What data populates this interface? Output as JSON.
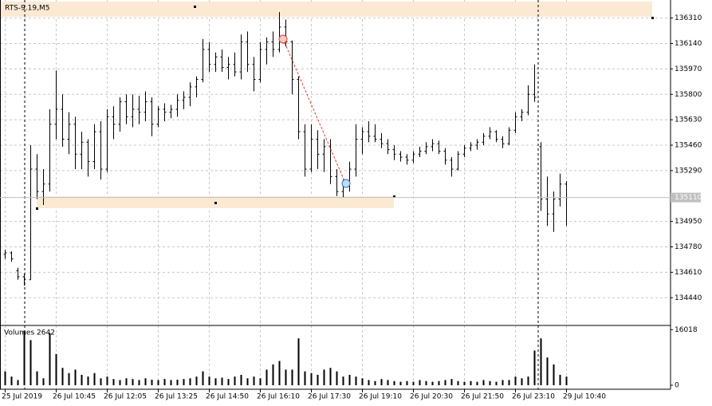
{
  "chart_data": [
    {
      "type": "ohlc",
      "title": "RTS-9.19,M5",
      "grid": true,
      "color": "#000000",
      "categories": [
        "25 Jul 2019",
        null,
        null,
        null,
        null,
        null,
        null,
        null,
        "26 Jul 10:45",
        null,
        null,
        null,
        null,
        null,
        null,
        null,
        "26 Jul 12:05",
        null,
        null,
        null,
        null,
        null,
        null,
        null,
        "26 Jul 13:25",
        null,
        null,
        null,
        null,
        null,
        null,
        null,
        "26 Jul 14:50",
        null,
        null,
        null,
        null,
        null,
        null,
        null,
        "26 Jul 16:10",
        null,
        null,
        null,
        null,
        null,
        null,
        null,
        "26 Jul 17:30",
        null,
        null,
        null,
        null,
        null,
        null,
        null,
        "26 Jul 19:10",
        null,
        null,
        null,
        null,
        null,
        null,
        null,
        "26 Jul 20:30",
        null,
        null,
        null,
        null,
        null,
        null,
        null,
        "26 Jul 21:50",
        null,
        null,
        null,
        null,
        null,
        null,
        null,
        "26 Jul 23:10",
        null,
        null,
        null,
        null,
        null,
        null,
        null,
        "29 Jul 10:40"
      ],
      "ohlc": [
        [
          134730,
          134760,
          134700,
          134740
        ],
        [
          134740,
          134750,
          134680,
          134700
        ],
        [
          134620,
          134640,
          134560,
          134580
        ],
        [
          134580,
          134600,
          134520,
          134560
        ],
        [
          134560,
          135460,
          134560,
          135300
        ],
        [
          135300,
          135400,
          135100,
          135150
        ],
        [
          135150,
          135300,
          135060,
          135200
        ],
        [
          135200,
          135700,
          135150,
          135600
        ],
        [
          135600,
          135960,
          135500,
          135700
        ],
        [
          135700,
          135800,
          135450,
          135500
        ],
        [
          135500,
          135680,
          135400,
          135600
        ],
        [
          135600,
          135650,
          135300,
          135400
        ],
        [
          135400,
          135550,
          135300,
          135480
        ],
        [
          135480,
          135500,
          135250,
          135350
        ],
        [
          135350,
          135600,
          135300,
          135550
        ],
        [
          135550,
          135620,
          135230,
          135300
        ],
        [
          135300,
          135700,
          135280,
          135650
        ],
        [
          135650,
          135720,
          135500,
          135600
        ],
        [
          135600,
          135780,
          135550,
          135750
        ],
        [
          135750,
          135800,
          135600,
          135650
        ],
        [
          135650,
          135800,
          135580,
          135700
        ],
        [
          135700,
          135790,
          135600,
          135680
        ],
        [
          135680,
          135820,
          135620,
          135750
        ],
        [
          135750,
          135780,
          135520,
          135600
        ],
        [
          135600,
          135720,
          135580,
          135700
        ],
        [
          135700,
          135740,
          135620,
          135680
        ],
        [
          135680,
          135730,
          135640,
          135700
        ],
        [
          135700,
          135800,
          135650,
          135760
        ],
        [
          135760,
          135820,
          135700,
          135780
        ],
        [
          135780,
          135880,
          135720,
          135850
        ],
        [
          135850,
          135920,
          135780,
          135900
        ],
        [
          135900,
          136170,
          135880,
          136100
        ],
        [
          136100,
          136150,
          135950,
          136000
        ],
        [
          136000,
          136080,
          135950,
          136050
        ],
        [
          136050,
          136100,
          135950,
          135980
        ],
        [
          135980,
          136050,
          135900,
          136000
        ],
        [
          136000,
          136080,
          135920,
          135950
        ],
        [
          135950,
          136200,
          135900,
          136150
        ],
        [
          136150,
          136220,
          135950,
          136000
        ],
        [
          136000,
          136050,
          135820,
          135900
        ],
        [
          135900,
          136150,
          135880,
          136100
        ],
        [
          136100,
          136180,
          136000,
          136150
        ],
        [
          136150,
          136220,
          136050,
          136100
        ],
        [
          136100,
          136350,
          136080,
          136250
        ],
        [
          136250,
          136300,
          136120,
          136150
        ],
        [
          136150,
          136160,
          135800,
          135900
        ],
        [
          135900,
          135920,
          135500,
          135550
        ],
        [
          135550,
          135600,
          135250,
          135300
        ],
        [
          135300,
          135600,
          135280,
          135500
        ],
        [
          135500,
          135560,
          135300,
          135400
        ],
        [
          135400,
          135500,
          135280,
          135450
        ],
        [
          135450,
          135500,
          135200,
          135250
        ],
        [
          135250,
          135300,
          135120,
          135150
        ],
        [
          135150,
          135230,
          135110,
          135200
        ],
        [
          135200,
          135350,
          135150,
          135300
        ],
        [
          135300,
          135600,
          135250,
          135500
        ],
        [
          135500,
          135580,
          135400,
          135550
        ],
        [
          135550,
          135620,
          135480,
          135520
        ],
        [
          135520,
          135600,
          135480,
          135500
        ],
        [
          135500,
          135540,
          135440,
          135470
        ],
        [
          135470,
          135500,
          135400,
          135430
        ],
        [
          135430,
          135460,
          135360,
          135400
        ],
        [
          135400,
          135420,
          135350,
          135380
        ],
        [
          135380,
          135400,
          135330,
          135360
        ],
        [
          135360,
          135420,
          135340,
          135400
        ],
        [
          135400,
          135450,
          135380,
          135420
        ],
        [
          135420,
          135480,
          135400,
          135450
        ],
        [
          135450,
          135500,
          135420,
          135470
        ],
        [
          135470,
          135490,
          135400,
          135420
        ],
        [
          135420,
          135440,
          135330,
          135360
        ],
        [
          135360,
          135380,
          135250,
          135300
        ],
        [
          135300,
          135420,
          135290,
          135400
        ],
        [
          135400,
          135460,
          135380,
          135440
        ],
        [
          135440,
          135480,
          135420,
          135460
        ],
        [
          135460,
          135500,
          135430,
          135480
        ],
        [
          135480,
          135540,
          135460,
          135520
        ],
        [
          135520,
          135580,
          135500,
          135550
        ],
        [
          135550,
          135560,
          135480,
          135500
        ],
        [
          135500,
          135520,
          135440,
          135470
        ],
        [
          135470,
          135580,
          135460,
          135560
        ],
        [
          135560,
          135680,
          135540,
          135650
        ],
        [
          135650,
          135700,
          135620,
          135680
        ],
        [
          135680,
          135860,
          135660,
          135800
        ],
        [
          135800,
          136000,
          135750,
          135780
        ],
        [
          135450,
          135480,
          135020,
          135100
        ],
        [
          135100,
          135250,
          134920,
          135000
        ],
        [
          135000,
          135150,
          134880,
          135100
        ],
        [
          135100,
          135270,
          135050,
          135200
        ],
        [
          135200,
          135220,
          134920,
          135110
        ]
      ],
      "ylim": [
        134260,
        136420
      ],
      "yticks": [
        134440,
        134610,
        134780,
        134950,
        135290,
        135460,
        135630,
        135800,
        135970,
        136140,
        136310
      ],
      "last_price": 135110
    },
    {
      "type": "bar",
      "title": "Volumes 2642",
      "color": "#000000",
      "values": [
        4000,
        2500,
        1500,
        15500,
        13000,
        4000,
        2000,
        15000,
        9000,
        5000,
        3500,
        4500,
        3000,
        2500,
        3500,
        2000,
        2500,
        1800,
        1500,
        2000,
        1800,
        1500,
        2000,
        1600,
        1500,
        1800,
        1500,
        1600,
        1800,
        2000,
        2500,
        4000,
        2500,
        2000,
        2200,
        1800,
        2500,
        3000,
        2000,
        2500,
        2000,
        4500,
        6000,
        7000,
        4500,
        4500,
        13500,
        4000,
        3500,
        3000,
        4500,
        5000,
        4000,
        2500,
        3000,
        2500,
        2000,
        1500,
        1200,
        1800,
        1500,
        1200,
        1000,
        1200,
        1000,
        1500,
        1200,
        1000,
        1200,
        1500,
        1800,
        1200,
        1000,
        1200,
        1000,
        1500,
        1200,
        1000,
        1500,
        1500,
        2500,
        2000,
        2500,
        10000,
        13500,
        8000,
        6000,
        3000,
        2500
      ],
      "ylim": [
        0,
        17000
      ],
      "yticks": [
        0,
        16018
      ]
    }
  ]
}
